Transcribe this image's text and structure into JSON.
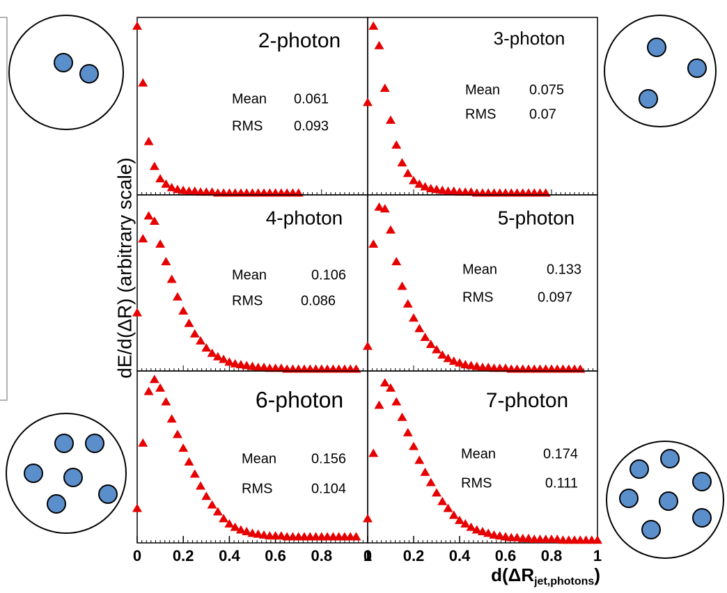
{
  "figure": {
    "ylabel": "dE/d(ΔR)  (arbitrary scale)",
    "xlabel": {
      "main": "d(ΔR",
      "sub": "jet,photons",
      "end": ")"
    }
  },
  "chart_data": [
    {
      "type": "scatter",
      "title": "2-photon",
      "stats": [
        {
          "label": "Mean",
          "value": 0.061
        },
        {
          "label": "RMS",
          "value": 0.093
        }
      ],
      "color": "#e60000",
      "xlim": [
        0,
        1
      ],
      "ylim": [
        0,
        100
      ],
      "x": [
        0,
        0.025,
        0.05,
        0.075,
        0.1,
        0.125,
        0.15,
        0.175,
        0.2,
        0.225,
        0.25,
        0.275,
        0.3,
        0.325,
        0.35,
        0.375,
        0.4,
        0.425,
        0.45,
        0.475,
        0.5,
        0.525,
        0.55,
        0.575,
        0.6,
        0.625,
        0.65,
        0.675,
        0.7
      ],
      "values": [
        95,
        63,
        30,
        16,
        9,
        6,
        4,
        3,
        2.5,
        2,
        2,
        1.5,
        1.5,
        1.5,
        1,
        1,
        1,
        1,
        1,
        1,
        1,
        1,
        1,
        1,
        1,
        1,
        1,
        1,
        1
      ]
    },
    {
      "type": "scatter",
      "title": "3-photon",
      "stats": [
        {
          "label": "Mean",
          "value": 0.075
        },
        {
          "label": "RMS",
          "value": 0.07
        }
      ],
      "color": "#e60000",
      "xlim": [
        0,
        1
      ],
      "ylim": [
        0,
        100
      ],
      "x": [
        0,
        0.025,
        0.05,
        0.075,
        0.1,
        0.125,
        0.15,
        0.175,
        0.2,
        0.225,
        0.25,
        0.275,
        0.3,
        0.325,
        0.35,
        0.375,
        0.4,
        0.425,
        0.45,
        0.475,
        0.5,
        0.525,
        0.55,
        0.575,
        0.6,
        0.625,
        0.65,
        0.675,
        0.7,
        0.725,
        0.75,
        0.775
      ],
      "values": [
        52,
        95,
        84,
        60,
        42,
        28,
        18,
        12,
        8,
        6,
        4.5,
        3.5,
        3,
        2.5,
        2,
        2,
        1.5,
        1.5,
        1.5,
        1,
        1,
        1,
        1,
        1,
        1,
        1,
        1,
        1,
        1,
        1,
        1,
        1
      ]
    },
    {
      "type": "scatter",
      "title": "4-photon",
      "stats": [
        {
          "label": "Mean",
          "value": 0.106
        },
        {
          "label": "RMS",
          "value": 0.086
        }
      ],
      "color": "#e60000",
      "xlim": [
        0,
        1
      ],
      "ylim": [
        0,
        100
      ],
      "x": [
        0,
        0.025,
        0.05,
        0.075,
        0.1,
        0.125,
        0.15,
        0.175,
        0.2,
        0.225,
        0.25,
        0.275,
        0.3,
        0.325,
        0.35,
        0.375,
        0.4,
        0.425,
        0.45,
        0.475,
        0.5,
        0.525,
        0.55,
        0.575,
        0.6,
        0.625,
        0.65,
        0.675,
        0.7,
        0.725,
        0.75,
        0.775,
        0.8,
        0.825,
        0.85,
        0.875,
        0.9,
        0.925,
        0.95
      ],
      "values": [
        33,
        75,
        88,
        85,
        72,
        62,
        52,
        42,
        34,
        27,
        21,
        17,
        13,
        10,
        8,
        6.5,
        5,
        4,
        3.5,
        3,
        2.5,
        2,
        2,
        1.5,
        1.5,
        1.5,
        1,
        1,
        1,
        1,
        1,
        1,
        1,
        1,
        1,
        1,
        1,
        1,
        1
      ]
    },
    {
      "type": "scatter",
      "title": "5-photon",
      "stats": [
        {
          "label": "Mean",
          "value": 0.133
        },
        {
          "label": "RMS",
          "value": 0.097
        }
      ],
      "color": "#e60000",
      "xlim": [
        0,
        1
      ],
      "ylim": [
        0,
        100
      ],
      "x": [
        0,
        0.025,
        0.05,
        0.075,
        0.1,
        0.125,
        0.15,
        0.175,
        0.2,
        0.225,
        0.25,
        0.275,
        0.3,
        0.325,
        0.35,
        0.375,
        0.4,
        0.425,
        0.45,
        0.475,
        0.5,
        0.525,
        0.55,
        0.575,
        0.6,
        0.625,
        0.65,
        0.675,
        0.7,
        0.725,
        0.75,
        0.775,
        0.8,
        0.825,
        0.85,
        0.875,
        0.9,
        0.925
      ],
      "values": [
        14,
        72,
        93,
        92,
        80,
        62,
        48,
        38,
        30,
        24,
        19,
        15,
        12,
        9,
        7,
        5.5,
        4.5,
        3.5,
        3,
        2.5,
        2,
        2,
        1.5,
        1.5,
        1.5,
        1,
        1,
        1,
        1,
        1,
        1,
        1,
        1,
        1,
        1,
        1,
        1,
        1
      ]
    },
    {
      "type": "scatter",
      "title": "6-photon",
      "stats": [
        {
          "label": "Mean",
          "value": 0.156
        },
        {
          "label": "RMS",
          "value": 0.104
        }
      ],
      "color": "#e60000",
      "xlim": [
        0,
        1
      ],
      "ylim": [
        0,
        100
      ],
      "xticks": [
        0,
        0.2,
        0.4,
        0.6,
        0.8,
        1
      ],
      "x": [
        0,
        0.025,
        0.05,
        0.075,
        0.1,
        0.125,
        0.15,
        0.175,
        0.2,
        0.225,
        0.25,
        0.275,
        0.3,
        0.325,
        0.35,
        0.375,
        0.4,
        0.425,
        0.45,
        0.475,
        0.5,
        0.525,
        0.55,
        0.575,
        0.6,
        0.625,
        0.65,
        0.675,
        0.7,
        0.725,
        0.75,
        0.775,
        0.8,
        0.825,
        0.85,
        0.875,
        0.9,
        0.925,
        0.95
      ],
      "values": [
        20,
        58,
        88,
        95,
        90,
        82,
        72,
        63,
        55,
        47,
        40,
        33,
        27,
        22,
        18,
        14,
        11,
        9,
        7.5,
        6.5,
        5.5,
        5,
        4.5,
        4,
        4,
        4,
        3.5,
        3.5,
        3.5,
        3.5,
        3.5,
        3.5,
        3.5,
        3.5,
        3.5,
        3.5,
        3.5,
        3.5,
        3.5
      ]
    },
    {
      "type": "scatter",
      "title": "7-photon",
      "stats": [
        {
          "label": "Mean",
          "value": 0.174
        },
        {
          "label": "RMS",
          "value": 0.111
        }
      ],
      "color": "#e60000",
      "xlim": [
        0,
        1
      ],
      "ylim": [
        0,
        100
      ],
      "xticks": [
        0,
        0.2,
        0.4,
        0.6,
        0.8,
        1
      ],
      "x": [
        0,
        0.025,
        0.05,
        0.075,
        0.1,
        0.125,
        0.15,
        0.175,
        0.2,
        0.225,
        0.25,
        0.275,
        0.3,
        0.325,
        0.35,
        0.375,
        0.4,
        0.425,
        0.45,
        0.475,
        0.5,
        0.525,
        0.55,
        0.575,
        0.6,
        0.625,
        0.65,
        0.675,
        0.7,
        0.725,
        0.75,
        0.775,
        0.8,
        0.825,
        0.85,
        0.875,
        0.9,
        0.925,
        0.95,
        0.975,
        1
      ],
      "values": [
        14,
        52,
        80,
        93,
        90,
        82,
        73,
        64,
        56,
        48,
        41,
        35,
        29,
        24,
        20,
        16,
        13,
        11,
        9,
        7.5,
        6.5,
        5.5,
        4.5,
        4,
        3.5,
        3,
        3,
        2.5,
        2.5,
        2,
        2,
        2,
        2,
        2,
        1.5,
        1.5,
        1.5,
        1.5,
        1.5,
        1.5,
        1.5
      ]
    }
  ]
}
